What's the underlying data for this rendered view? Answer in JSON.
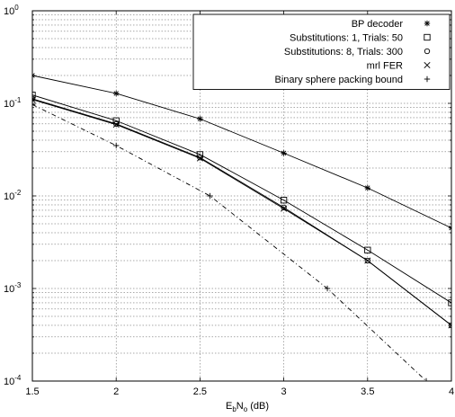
{
  "chart_data": {
    "type": "line",
    "xlabel": {
      "main": "E",
      "sub1": "b",
      "mid": "N",
      "sub2": "o",
      "unit": " (dB)"
    },
    "ylabel": "",
    "xlim": [
      1.5,
      4
    ],
    "ylim_log10": [
      -4,
      0
    ],
    "yscale": "log",
    "grid": true,
    "legend_position": "top-right",
    "x_ticks": [
      1.5,
      2,
      2.5,
      3,
      3.5,
      4
    ],
    "x_tick_labels": [
      "1.5",
      "2",
      "2.5",
      "3",
      "3.5",
      "4"
    ],
    "y_ticks": [
      {
        "base": "10",
        "exp": "0",
        "value": 1
      },
      {
        "base": "10",
        "exp": "-1",
        "value": 0.1
      },
      {
        "base": "10",
        "exp": "-2",
        "value": 0.01
      },
      {
        "base": "10",
        "exp": "-3",
        "value": 0.001
      },
      {
        "base": "10",
        "exp": "-4",
        "value": 0.0001
      }
    ],
    "series": [
      {
        "name": "BP decoder",
        "marker": "asterisk",
        "line": "solid",
        "x": [
          1.5,
          2,
          2.5,
          3,
          3.5,
          4
        ],
        "y": [
          0.2,
          0.128,
          0.068,
          0.029,
          0.0122,
          0.0045
        ]
      },
      {
        "name": "Substitutions: 1, Trials: 50",
        "marker": "square",
        "line": "solid",
        "x": [
          1.5,
          2,
          2.5,
          3,
          3.5,
          4
        ],
        "y": [
          0.123,
          0.065,
          0.028,
          0.009,
          0.0026,
          0.0007
        ]
      },
      {
        "name": "Substitutions: 8, Trials: 300",
        "marker": "circle",
        "line": "solid",
        "x": [
          1.5,
          2,
          2.5,
          3,
          3.5,
          4
        ],
        "y": [
          0.112,
          0.06,
          0.026,
          0.0075,
          0.002,
          0.0004
        ]
      },
      {
        "name": "mrl FER",
        "marker": "x",
        "line": "solid",
        "x": [
          1.5,
          2,
          2.5,
          3,
          3.5,
          4
        ],
        "y": [
          0.11,
          0.059,
          0.0255,
          0.0073,
          0.002,
          0.0004
        ]
      },
      {
        "name": "Binary sphere packing bound",
        "marker": "plus",
        "line": "dashdot",
        "x": [
          1.5,
          2,
          2.56,
          3.26,
          3.85,
          4
        ],
        "y": [
          0.097,
          0.035,
          0.01,
          0.001,
          0.0001,
          5.5e-05
        ]
      }
    ]
  }
}
